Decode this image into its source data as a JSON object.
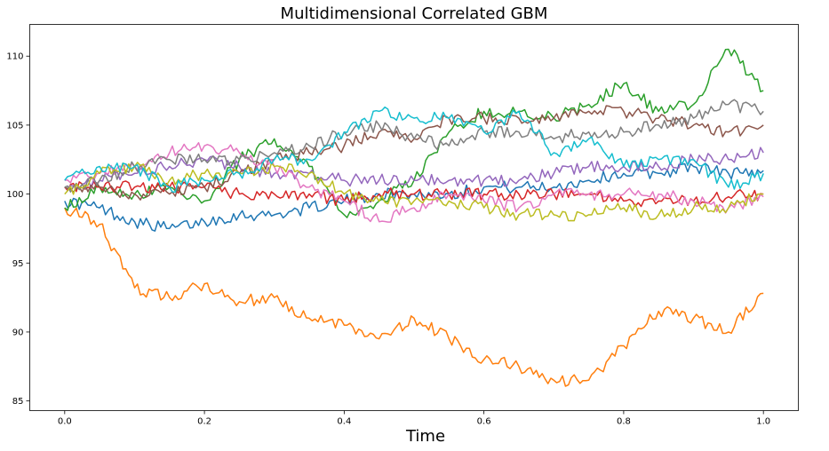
{
  "chart_data": {
    "type": "line",
    "title": "Multidimensional Correlated GBM",
    "xlabel": "Time",
    "ylabel": "",
    "xlim": [
      -0.05,
      1.05
    ],
    "ylim": [
      84.3,
      112.3
    ],
    "xticks": [
      "0.0",
      "0.2",
      "0.4",
      "0.6",
      "0.8",
      "1.0"
    ],
    "yticks": [
      "85",
      "90",
      "95",
      "100",
      "105",
      "110"
    ],
    "grid": false,
    "x": [
      0,
      0.05,
      0.1,
      0.15,
      0.2,
      0.25,
      0.3,
      0.35,
      0.4,
      0.45,
      0.5,
      0.55,
      0.6,
      0.65,
      0.7,
      0.75,
      0.8,
      0.85,
      0.9,
      0.95,
      1.0
    ],
    "series": [
      {
        "color": "#1f77b4",
        "values": [
          99.5,
          99,
          98,
          97.5,
          98,
          98.5,
          98.5,
          99,
          99.5,
          100,
          100,
          100,
          100.5,
          100.5,
          100.5,
          101,
          101.5,
          101.5,
          102,
          101.5,
          101.7
        ]
      },
      {
        "color": "#ff7f0e",
        "values": [
          99,
          97.8,
          93.2,
          92.5,
          93.5,
          92.2,
          92.5,
          91,
          90.5,
          89.5,
          91,
          89.5,
          88,
          87.5,
          86.5,
          86.5,
          89,
          91.5,
          91,
          90,
          92.8
        ]
      },
      {
        "color": "#2ca02c",
        "values": [
          99,
          100.5,
          100,
          100.5,
          99.5,
          102.5,
          104,
          102,
          98.5,
          99.5,
          101,
          104.5,
          106,
          106,
          105.5,
          106.5,
          108,
          106,
          106.5,
          110.5,
          107.5
        ]
      },
      {
        "color": "#d62728",
        "values": [
          100.5,
          100.5,
          100.5,
          100.5,
          100.5,
          100,
          100,
          100,
          99.5,
          100,
          100,
          100,
          100,
          100,
          100,
          100,
          99.5,
          99.5,
          99.5,
          99.8,
          100
        ]
      },
      {
        "color": "#9467bd",
        "values": [
          100.5,
          101,
          101.5,
          102,
          102.5,
          102,
          101.5,
          101.5,
          101,
          101,
          101,
          101,
          101,
          101,
          101.5,
          102,
          102,
          102,
          102.5,
          102.5,
          103
        ]
      },
      {
        "color": "#8c564b",
        "values": [
          100.5,
          100.5,
          100,
          100,
          100.5,
          101.5,
          102.5,
          103,
          103.5,
          104.5,
          104,
          105.5,
          105.5,
          105.5,
          105.5,
          106,
          106,
          105.5,
          105,
          104.5,
          105
        ]
      },
      {
        "color": "#e377c2",
        "values": [
          101,
          101.5,
          102,
          103,
          103.5,
          103,
          102,
          100.5,
          99.5,
          98,
          99,
          100,
          99.5,
          99,
          100,
          100,
          100,
          100,
          99.5,
          99,
          99.8
        ]
      },
      {
        "color": "#7f7f7f",
        "values": [
          100.5,
          101,
          102,
          102.5,
          102.5,
          102.5,
          103,
          103.5,
          104.5,
          105,
          104,
          103.5,
          104.5,
          104.5,
          104,
          104.5,
          104.5,
          105,
          105.5,
          106.5,
          106
        ]
      },
      {
        "color": "#bcbd22",
        "values": [
          100,
          101.5,
          102,
          101,
          101.5,
          101.5,
          102,
          101.5,
          100,
          99.5,
          99.5,
          99.5,
          99,
          98.5,
          98.5,
          98.5,
          99,
          98.5,
          99,
          99,
          100
        ]
      },
      {
        "color": "#17becf",
        "values": [
          101,
          102,
          102,
          100.5,
          101,
          101.5,
          102.5,
          102.5,
          104.5,
          106,
          105.5,
          105.5,
          104.5,
          106,
          103,
          104,
          102,
          102.5,
          102.5,
          100.5,
          101.5
        ]
      }
    ]
  }
}
